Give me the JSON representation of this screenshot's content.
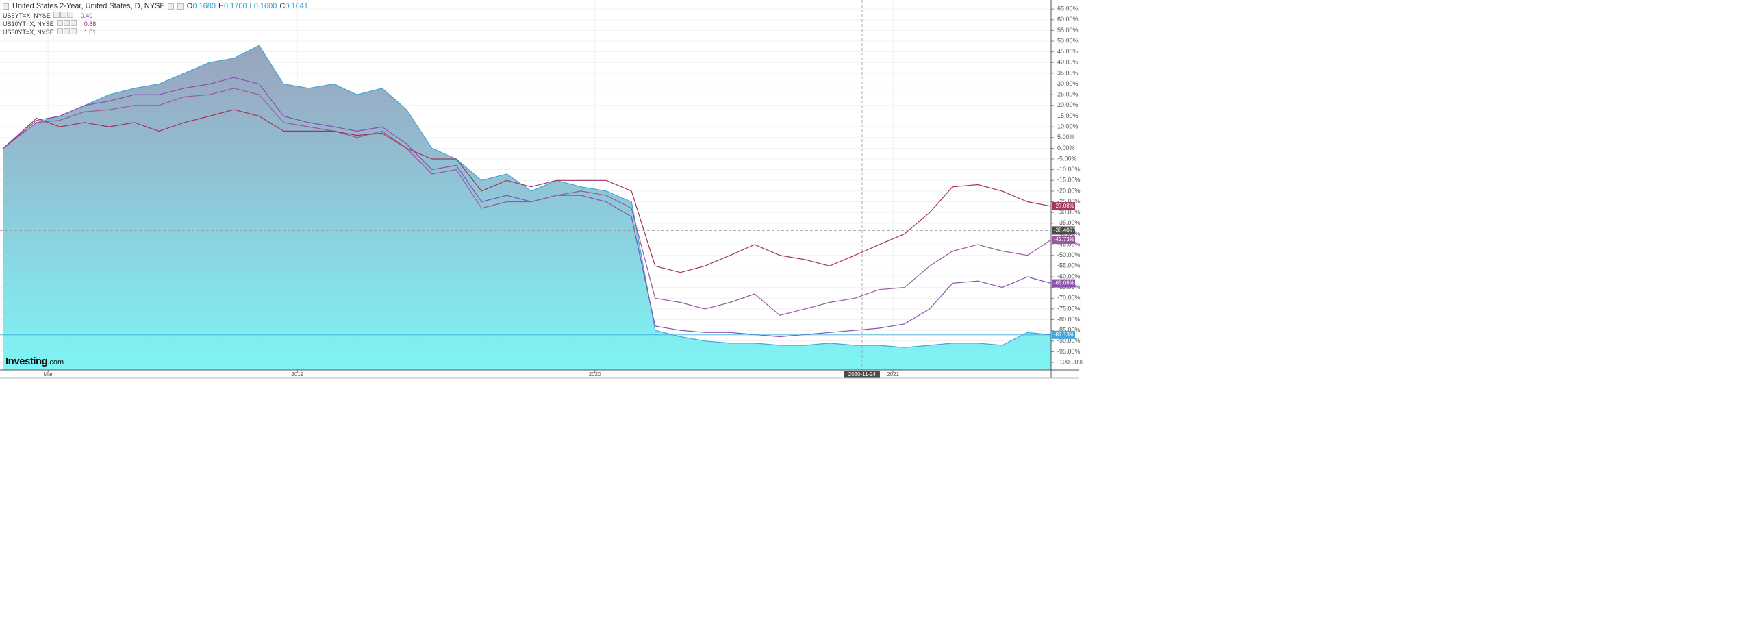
{
  "header": {
    "title": "United States 2-Year, United States, D, NYSE",
    "ohlc": [
      {
        "label": "O",
        "value": "0.1680"
      },
      {
        "label": "H",
        "value": "0.1700"
      },
      {
        "label": "L",
        "value": "0.1600"
      },
      {
        "label": "C",
        "value": "0.1641"
      }
    ],
    "comparisons": [
      {
        "name": "US5YT=X, NYSE",
        "value": "0.40",
        "color": "#8a3fb0"
      },
      {
        "name": "US10YT=X, NYSE",
        "value": "0.88",
        "color": "#a02a7a"
      },
      {
        "name": "US30YT=X, NYSE",
        "value": "1.61",
        "color": "#b0244f"
      }
    ],
    "brand": "Investing",
    "brand_suffix": ".com"
  },
  "chart_data": {
    "type": "line",
    "x": [
      "2018-01-05",
      "2018-02-15",
      "2018-03-15",
      "2018-04-15",
      "2018-05-15",
      "2018-06-15",
      "2018-07-15",
      "2018-08-15",
      "2018-09-15",
      "2018-10-15",
      "2018-11-15",
      "2018-12-15",
      "2019-01-15",
      "2019-02-15",
      "2019-03-15",
      "2019-04-15",
      "2019-05-15",
      "2019-06-15",
      "2019-07-15",
      "2019-08-15",
      "2019-09-15",
      "2019-10-15",
      "2019-11-15",
      "2019-12-15",
      "2020-01-15",
      "2020-02-15",
      "2020-03-15",
      "2020-04-15",
      "2020-05-15",
      "2020-06-15",
      "2020-07-15",
      "2020-08-15",
      "2020-09-15",
      "2020-10-15",
      "2020-11-15",
      "2020-12-15",
      "2021-01-15",
      "2021-02-15",
      "2021-03-15",
      "2021-04-15",
      "2021-05-15",
      "2021-06-15",
      "2021-07-14"
    ],
    "series": [
      {
        "name": "United States 2-Year",
        "color": "#3fa9d9",
        "area": true,
        "last_label": "-87.13%",
        "values": [
          0,
          12,
          15,
          20,
          25,
          28,
          30,
          35,
          40,
          42,
          48,
          30,
          28,
          30,
          25,
          28,
          18,
          0,
          -5,
          -15,
          -12,
          -20,
          -15,
          -18,
          -20,
          -25,
          -85,
          -88,
          -90,
          -91,
          -91,
          -92,
          -92,
          -91,
          -92,
          -92,
          -93,
          -92,
          -91,
          -91,
          -92,
          -86,
          -87.13
        ]
      },
      {
        "name": "US5YT=X",
        "color": "#8a4fb0",
        "last_label": "-63.08%",
        "values": [
          0,
          13,
          15,
          20,
          22,
          25,
          25,
          28,
          30,
          33,
          30,
          15,
          12,
          10,
          8,
          10,
          2,
          -10,
          -8,
          -25,
          -22,
          -25,
          -22,
          -22,
          -25,
          -32,
          -83,
          -85,
          -86,
          -86,
          -87,
          -88,
          -87,
          -86,
          -85,
          -84,
          -82,
          -75,
          -63,
          -62,
          -65,
          -60,
          -63.08
        ]
      },
      {
        "name": "US10YT=X",
        "color": "#985a9c",
        "last_label": "-42.73%",
        "values": [
          0,
          12,
          13,
          17,
          18,
          20,
          20,
          24,
          25,
          28,
          25,
          12,
          10,
          8,
          5,
          8,
          0,
          -12,
          -10,
          -28,
          -25,
          -25,
          -22,
          -20,
          -22,
          -28,
          -70,
          -72,
          -75,
          -72,
          -68,
          -78,
          -75,
          -72,
          -70,
          -66,
          -65,
          -55,
          -48,
          -45,
          -48,
          -50,
          -42.73
        ]
      },
      {
        "name": "US30YT=X",
        "color": "#a3345f",
        "last_label": "-27.08%",
        "values": [
          0,
          14,
          10,
          12,
          10,
          12,
          8,
          12,
          15,
          18,
          15,
          8,
          8,
          8,
          6,
          7,
          0,
          -5,
          -5,
          -20,
          -15,
          -18,
          -15,
          -15,
          -15,
          -20,
          -55,
          -58,
          -55,
          -50,
          -45,
          -50,
          -52,
          -55,
          -50,
          -45,
          -40,
          -30,
          -18,
          -17,
          -20,
          -25,
          -27.08
        ]
      }
    ],
    "xlim": [
      "2018-01-01",
      "2021-07-14"
    ],
    "xticks": [
      {
        "value": "2018-03-01",
        "label": "Mar"
      },
      {
        "value": "2019-01-01",
        "label": "2019"
      },
      {
        "value": "2020-01-01",
        "label": "2020"
      },
      {
        "value": "2021-01-01",
        "label": "2021"
      }
    ],
    "ylim": [
      -103.5,
      69.2
    ],
    "yticks": [
      {
        "value": 65,
        "label": "65.00%"
      },
      {
        "value": 60,
        "label": "60.00%"
      },
      {
        "value": 55,
        "label": "55.00%"
      },
      {
        "value": 50,
        "label": "50.00%"
      },
      {
        "value": 45,
        "label": "45.00%"
      },
      {
        "value": 40,
        "label": "40.00%"
      },
      {
        "value": 35,
        "label": "35.00%"
      },
      {
        "value": 30,
        "label": "30.00%"
      },
      {
        "value": 25,
        "label": "25.00%"
      },
      {
        "value": 20,
        "label": "20.00%"
      },
      {
        "value": 15,
        "label": "15.00%"
      },
      {
        "value": 10,
        "label": "10.00%"
      },
      {
        "value": 5,
        "label": "5.00%"
      },
      {
        "value": 0,
        "label": "0.00%"
      },
      {
        "value": -5,
        "label": "-5.00%"
      },
      {
        "value": -10,
        "label": "-10.00%"
      },
      {
        "value": -15,
        "label": "-15.00%"
      },
      {
        "value": -20,
        "label": "-20.00%"
      },
      {
        "value": -25,
        "label": "-25.00%"
      },
      {
        "value": -30,
        "label": "-30.00%"
      },
      {
        "value": -35,
        "label": "-35.00%"
      },
      {
        "value": -40,
        "label": "-40.00%"
      },
      {
        "value": -45,
        "label": "-45.00%"
      },
      {
        "value": -50,
        "label": "-50.00%"
      },
      {
        "value": -55,
        "label": "-55.00%"
      },
      {
        "value": -60,
        "label": "-60.00%"
      },
      {
        "value": -65,
        "label": "-65.00%"
      },
      {
        "value": -70,
        "label": "-70.00%"
      },
      {
        "value": -75,
        "label": "-75.00%"
      },
      {
        "value": -80,
        "label": "-80.00%"
      },
      {
        "value": -85,
        "label": "-85.00%"
      },
      {
        "value": -90,
        "label": "-90.00%"
      },
      {
        "value": -95,
        "label": "-95.00%"
      },
      {
        "value": -100,
        "label": "-100.00%"
      }
    ],
    "grid": true,
    "crosshair": {
      "x": "2020-11-24",
      "y": -38.4097
    }
  }
}
